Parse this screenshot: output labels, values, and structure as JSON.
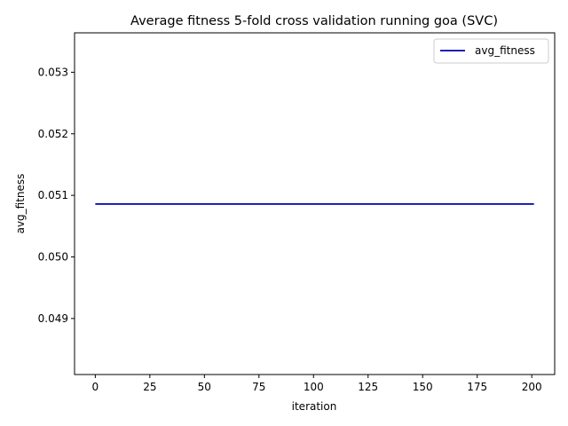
{
  "chart_data": {
    "type": "line",
    "title": "Average fitness 5-fold cross validation running goa (SVC)",
    "xlabel": "iteration",
    "ylabel": "avg_fitness",
    "xlim": [
      -9.5,
      210.5
    ],
    "ylim": [
      0.04809,
      0.05364
    ],
    "xticks": [
      0,
      25,
      50,
      75,
      100,
      125,
      150,
      175,
      200
    ],
    "xtick_labels": [
      "0",
      "25",
      "50",
      "75",
      "100",
      "125",
      "150",
      "175",
      "200"
    ],
    "yticks": [
      0.049,
      0.05,
      0.051,
      0.052,
      0.053
    ],
    "ytick_labels": [
      "0.049",
      "0.050",
      "0.051",
      "0.052",
      "0.053"
    ],
    "grid": false,
    "legend_position": "upper right",
    "series": [
      {
        "name": "avg_fitness",
        "color": "#0000aa",
        "x": [
          0,
          201
        ],
        "y": [
          0.05086,
          0.05086
        ]
      }
    ]
  }
}
